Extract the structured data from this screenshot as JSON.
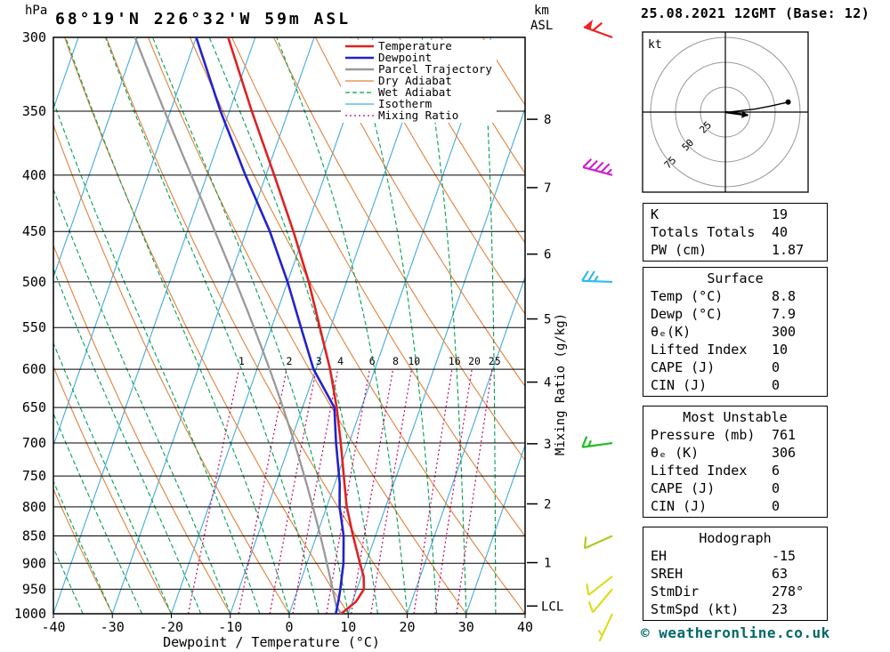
{
  "header": {
    "hpa_label": "hPa",
    "date_title": "25.08.2021 12GMT (Base: 12)"
  },
  "copyright": "© weatheronline.co.uk",
  "chart_data": {
    "type": "skewt",
    "title": "68°19'N 226°32'W 59m ASL",
    "xlabel": "Dewpoint / Temperature (°C)",
    "right_axis_label": "Mixing Ratio (g/kg)",
    "x_range": [
      -40,
      40
    ],
    "pressure_range": [
      300,
      1000
    ],
    "pressure_ticks": [
      300,
      350,
      400,
      450,
      500,
      550,
      600,
      650,
      700,
      750,
      800,
      850,
      900,
      950,
      1000
    ],
    "temp_ticks": [
      -40,
      -30,
      -20,
      -10,
      0,
      10,
      20,
      30,
      40
    ],
    "km_axis": {
      "unit": "km",
      "asl": "ASL",
      "ticks": [
        1,
        2,
        3,
        4,
        5,
        6,
        7,
        8
      ],
      "lcl_label": "LCL"
    },
    "mixing_ratio_values": [
      1,
      2,
      3,
      4,
      6,
      8,
      10,
      16,
      20,
      25
    ],
    "legend": [
      {
        "label": "Temperature",
        "color": "#dd2222",
        "width": 2.5,
        "dash": "none"
      },
      {
        "label": "Dewpoint",
        "color": "#2222cc",
        "width": 2.5,
        "dash": "none"
      },
      {
        "label": "Parcel Trajectory",
        "color": "#999999",
        "width": 2.5,
        "dash": "none"
      },
      {
        "label": "Dry Adiabat",
        "color": "#e0823c",
        "width": 1.3,
        "dash": "none"
      },
      {
        "label": "Wet Adiabat",
        "color": "#00a050",
        "width": 1.3,
        "dash": "5 3"
      },
      {
        "label": "Isotherm",
        "color": "#44aadd",
        "width": 1.3,
        "dash": "none"
      },
      {
        "label": "Mixing Ratio",
        "color": "#cc0066",
        "width": 1.3,
        "dash": "2 3"
      }
    ],
    "sounding": {
      "pressure_hpa": [
        1000,
        975,
        950,
        925,
        900,
        850,
        800,
        761,
        700,
        650,
        600,
        550,
        500,
        450,
        400,
        350,
        300
      ],
      "temperature_c": [
        8.8,
        10.6,
        11.2,
        10.4,
        9.0,
        6.2,
        3.4,
        1.6,
        -1.4,
        -4.2,
        -7.6,
        -11.8,
        -16.4,
        -22.0,
        -28.6,
        -36.2,
        -44.6
      ],
      "dewpoint_c": [
        7.9,
        7.6,
        7.2,
        6.7,
        6.2,
        4.6,
        2.2,
        0.8,
        -2.2,
        -4.6,
        -10.4,
        -15.0,
        -20.0,
        -26.0,
        -33.5,
        -41.5,
        -50.0
      ]
    },
    "parcel": {
      "surface_pressure": 1000,
      "surface_temp": 8.8,
      "lcl_pressure": 984
    },
    "wind_barbs": [
      {
        "pressure": 300,
        "speed_kt": 60,
        "dir_deg": 290,
        "color": "#ee2222"
      },
      {
        "pressure": 400,
        "speed_kt": 45,
        "dir_deg": 285,
        "color": "#cc22cc"
      },
      {
        "pressure": 500,
        "speed_kt": 25,
        "dir_deg": 272,
        "color": "#33bbee"
      },
      {
        "pressure": 700,
        "speed_kt": 15,
        "dir_deg": 262,
        "color": "#22bb22"
      },
      {
        "pressure": 850,
        "speed_kt": 10,
        "dir_deg": 246,
        "color": "#aacc22"
      },
      {
        "pressure": 925,
        "speed_kt": 10,
        "dir_deg": 232,
        "color": "#dddd22"
      },
      {
        "pressure": 950,
        "speed_kt": 10,
        "dir_deg": 220,
        "color": "#dddd22"
      },
      {
        "pressure": 1000,
        "speed_kt": 5,
        "dir_deg": 205,
        "color": "#dddd22"
      }
    ]
  },
  "hodograph": {
    "unit_label": "kt",
    "rings_kt": [
      25,
      50,
      75
    ],
    "trace_kt": [
      [
        0,
        0
      ],
      [
        4,
        0
      ],
      [
        12,
        -1
      ],
      [
        20,
        -2
      ],
      [
        30,
        -3
      ],
      [
        45,
        -6
      ],
      [
        63,
        -10
      ]
    ],
    "storm_motion": {
      "dir_deg": 278,
      "speed_kt": 23
    }
  },
  "tables": {
    "panels": [
      {
        "rows": [
          [
            "K",
            "19"
          ],
          [
            "Totals Totals",
            "40"
          ],
          [
            "PW (cm)",
            "1.87"
          ]
        ]
      },
      {
        "header": "Surface",
        "rows": [
          [
            "Temp (°C)",
            "8.8"
          ],
          [
            "Dewp (°C)",
            "7.9"
          ],
          [
            "θₑ(K)",
            "300"
          ],
          [
            "Lifted Index",
            "10"
          ],
          [
            "CAPE (J)",
            "0"
          ],
          [
            "CIN (J)",
            "0"
          ]
        ]
      },
      {
        "header": "Most Unstable",
        "rows": [
          [
            "Pressure (mb)",
            "761"
          ],
          [
            "θₑ (K)",
            "306"
          ],
          [
            "Lifted Index",
            "6"
          ],
          [
            "CAPE (J)",
            "0"
          ],
          [
            "CIN (J)",
            "0"
          ]
        ]
      },
      {
        "header": "Hodograph",
        "rows": [
          [
            "EH",
            "-15"
          ],
          [
            "SREH",
            "63"
          ],
          [
            "StmDir",
            "278°"
          ],
          [
            "StmSpd (kt)",
            "23"
          ]
        ]
      }
    ]
  }
}
